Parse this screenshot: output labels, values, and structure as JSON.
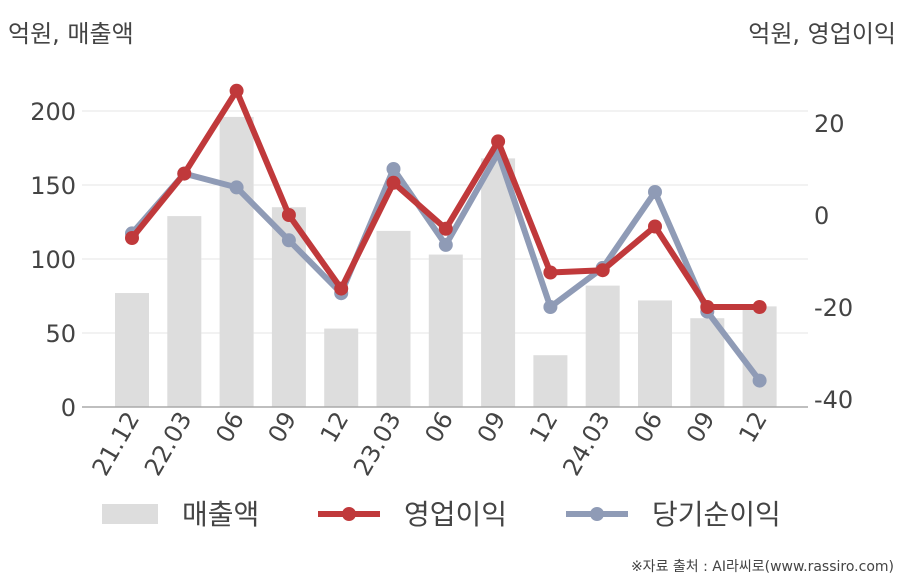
{
  "chart_data": {
    "type": "bar+line",
    "categories": [
      "21.12",
      "22.03",
      "06",
      "09",
      "12",
      "23.03",
      "06",
      "09",
      "12",
      "24.03",
      "06",
      "09",
      "12"
    ],
    "left_axis": {
      "unit_label": "억원, 매출액",
      "range": [
        0,
        200
      ],
      "ticks": [
        "0",
        "50",
        "100",
        "150",
        "200"
      ]
    },
    "right_axis": {
      "unit_label": "억원, 영업이익",
      "range": [
        -40,
        20
      ],
      "ticks": [
        "-40",
        "-20",
        "0",
        "20"
      ]
    },
    "series": [
      {
        "name": "매출액",
        "type": "bar",
        "axis": "left",
        "color": "#dddddd",
        "values": [
          77,
          129,
          196,
          135,
          53,
          119,
          103,
          168,
          35,
          82,
          72,
          60,
          68
        ]
      },
      {
        "name": "영업이익",
        "type": "line",
        "axis": "right",
        "color": "#c0393b",
        "values": [
          -5,
          9,
          27,
          0,
          -16,
          7,
          -3,
          16,
          -12.5,
          -12,
          -2.5,
          -20,
          -20
        ]
      },
      {
        "name": "당기순이익",
        "type": "line",
        "axis": "right",
        "color": "#8f9bb6",
        "values": [
          -4,
          9,
          6,
          -5.5,
          -17,
          10,
          -6.5,
          13.5,
          -20,
          -11.5,
          5,
          -21,
          -36
        ]
      }
    ],
    "grid": true,
    "legend_position": "bottom"
  },
  "source_text": "※자료 출처 : AI라씨로(www.rassiro.com)"
}
